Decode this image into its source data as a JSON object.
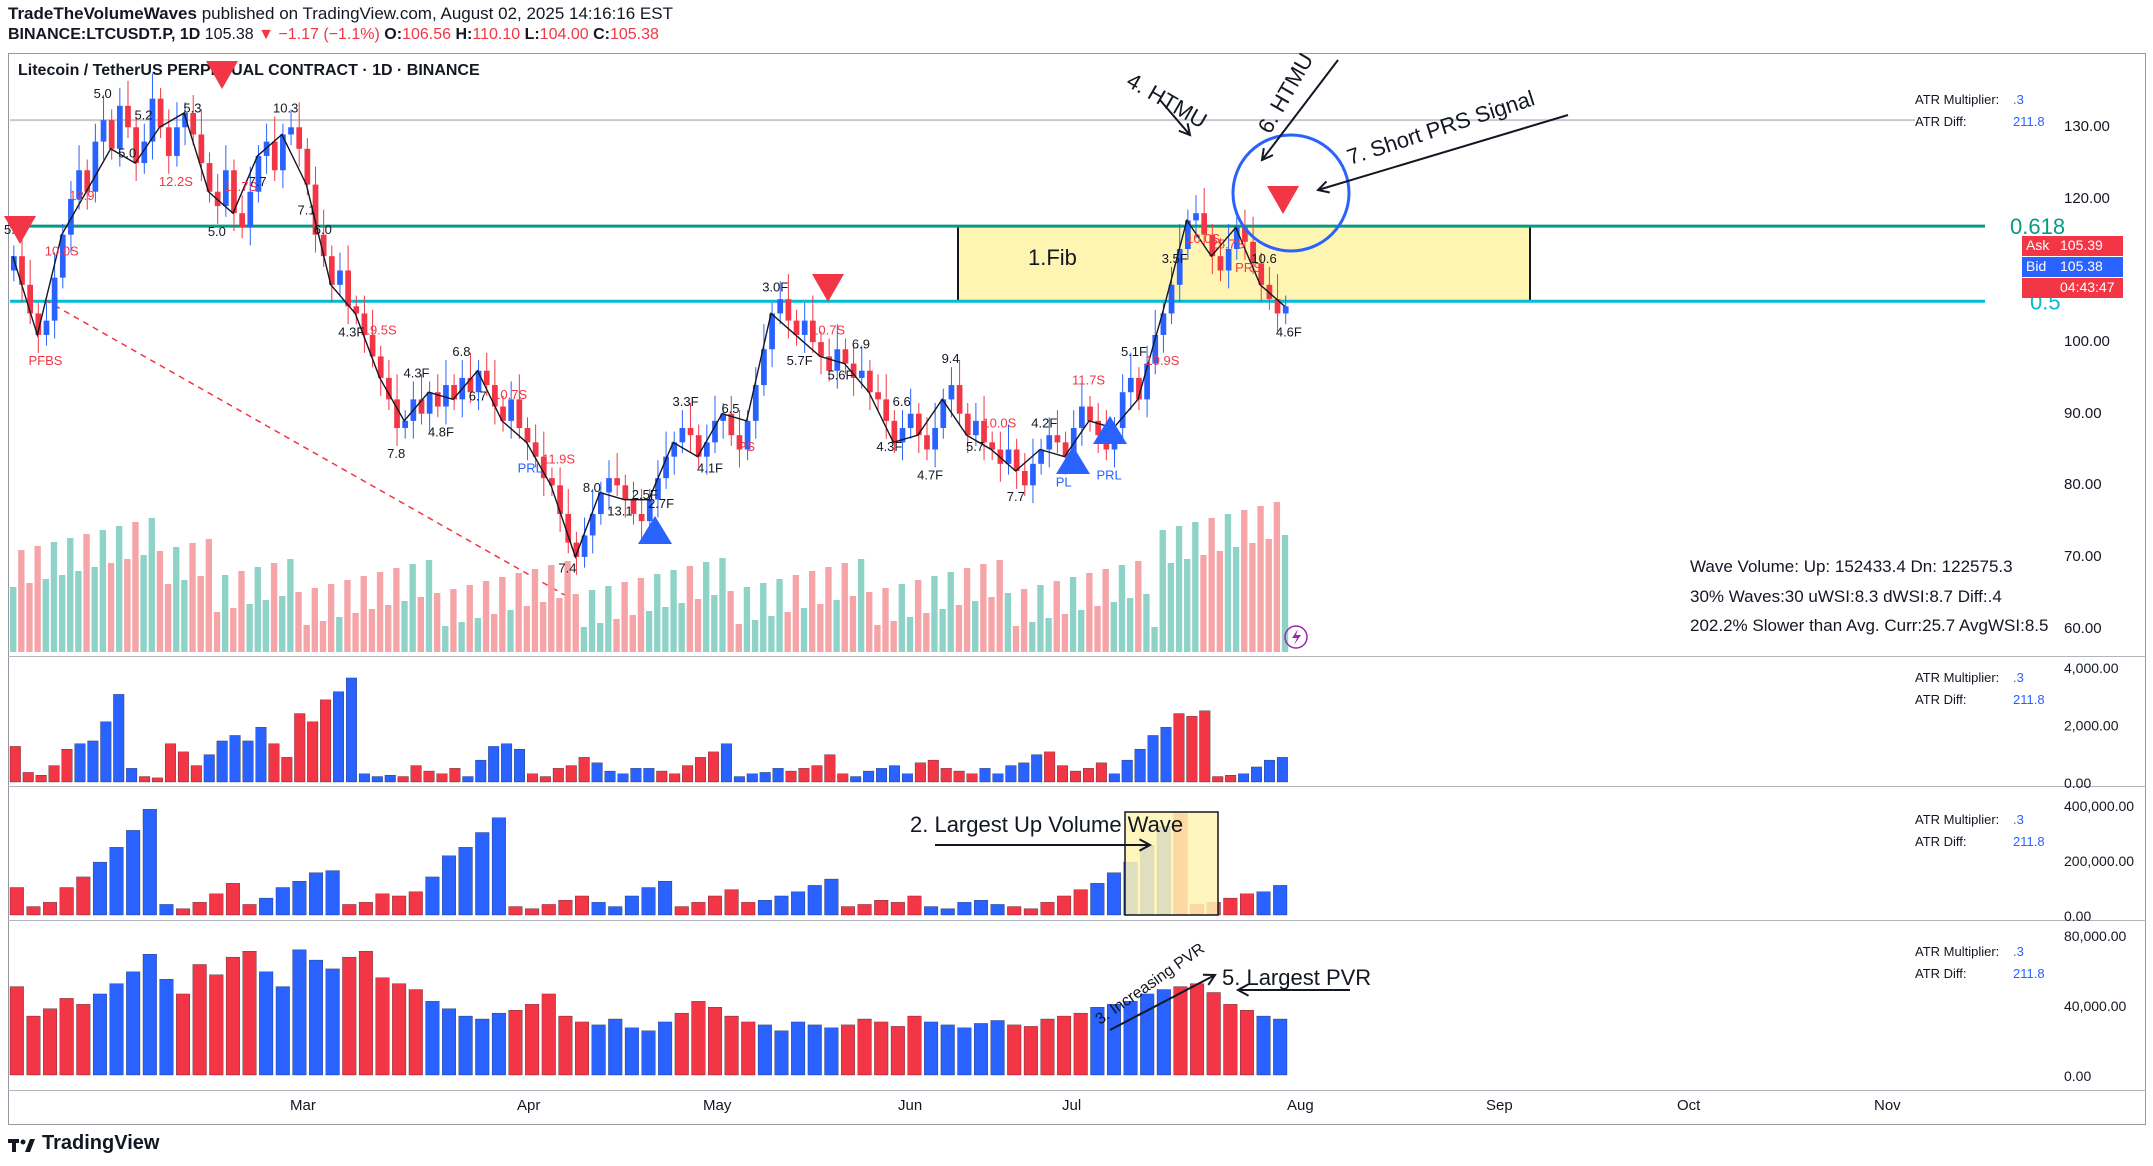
{
  "header": {
    "author": "TradeTheVolumeWaves",
    "published": "published on TradingView.com, August 02, 2025 14:16:16 EST",
    "symbol_line": "BINANCE:LTCUSDT.P, 1D",
    "last": "105.38",
    "change": "▼ −1.17 (−1.1%)",
    "o_label": "O:",
    "o": "106.56",
    "h_label": "H:",
    "h": "110.10",
    "l_label": "L:",
    "l": "104.00",
    "c_label": "C:",
    "c": "105.38"
  },
  "chart_title": "Litecoin / TetherUS PERPETUAL CONTRACT · 1D · BINANCE",
  "price_axis": [
    "130.00",
    "120.00",
    "110.00",
    "100.00",
    "90.00",
    "80.00",
    "70.00",
    "60.00"
  ],
  "fib": {
    "upper_label": "0.618",
    "lower_label": "0.5",
    "zone_label": "1.Fib"
  },
  "badges": {
    "ask_label": "Ask",
    "ask": "105.39",
    "bid_label": "Bid",
    "bid": "105.38",
    "countdown": "04:43:47"
  },
  "atr_box": {
    "mult_label": "ATR Multiplier:",
    "mult": ".3",
    "diff_label": "ATR Diff:",
    "diff": "211.8"
  },
  "stats": {
    "line1": "Wave Volume: Up: 152433.4 Dn: 122575.3",
    "line2": "30% Waves:30 uWSI:8.3 dWSI:8.7 Diff:.4",
    "line3": "202.2% Slower than Avg. Curr:25.7 AvgWSI:8.5"
  },
  "panes": [
    {
      "name": "wave-time",
      "axis": [
        "4,000.00",
        "2,000.00",
        "0.00"
      ]
    },
    {
      "name": "wave-volume",
      "axis": [
        "400,000.00",
        "200,000.00",
        "0.00"
      ]
    },
    {
      "name": "pvr",
      "axis": [
        "80,000.00",
        "40,000.00",
        "0.00"
      ]
    }
  ],
  "time_axis": [
    "Mar",
    "Apr",
    "May",
    "Jun",
    "Jul",
    "Aug",
    "Sep",
    "Oct",
    "Nov"
  ],
  "annotations": {
    "htmu4": "4. HTMU",
    "htmu6": "6. HTMU",
    "prs7": "7. Short PRS Signal",
    "largest_up": "2. Largest Up Volume Wave",
    "increasing_pvr": "3. Increasing PVR",
    "largest_pvr": "5. Largest PVR"
  },
  "wave_labels": [
    {
      "t": "5.4",
      "c": "dark"
    },
    {
      "t": "PFBS",
      "c": "red"
    },
    {
      "t": "10.0S",
      "c": "red"
    },
    {
      "t": "12.9",
      "c": "red"
    },
    {
      "t": "5.0",
      "c": "dark"
    },
    {
      "t": "5.0",
      "c": "dark"
    },
    {
      "t": "5.2",
      "c": "dark"
    },
    {
      "t": "12.2S",
      "c": "red"
    },
    {
      "t": "5.3",
      "c": "dark"
    },
    {
      "t": "5.0",
      "c": "dark"
    },
    {
      "t": "11.7S",
      "c": "red"
    },
    {
      "t": "7.7",
      "c": "dark"
    },
    {
      "t": "10.3",
      "c": "dark"
    },
    {
      "t": "7.1",
      "c": "dark"
    },
    {
      "t": "6.0",
      "c": "dark"
    },
    {
      "t": "4.3F",
      "c": "dark"
    },
    {
      "t": "19.5S",
      "c": "red"
    },
    {
      "t": "7.8",
      "c": "dark"
    },
    {
      "t": "4.3F",
      "c": "dark"
    },
    {
      "t": "4.8F",
      "c": "dark"
    },
    {
      "t": "6.8",
      "c": "dark"
    },
    {
      "t": "6.7",
      "c": "dark"
    },
    {
      "t": "10.7S",
      "c": "red"
    },
    {
      "t": "PRL",
      "c": "blue"
    },
    {
      "t": "11.9S",
      "c": "red"
    },
    {
      "t": "7.4",
      "c": "dark"
    },
    {
      "t": "8.0",
      "c": "dark"
    },
    {
      "t": "13.1",
      "c": "dark"
    },
    {
      "t": "2.5F",
      "c": "dark"
    },
    {
      "t": "2.7F",
      "c": "dark"
    },
    {
      "t": "3.3F",
      "c": "dark"
    },
    {
      "t": "4.1F",
      "c": "dark"
    },
    {
      "t": "6.5",
      "c": "dark"
    },
    {
      "t": "PS",
      "c": "red"
    },
    {
      "t": "3.0F",
      "c": "dark"
    },
    {
      "t": "5.7F",
      "c": "dark"
    },
    {
      "t": "10.7S",
      "c": "red"
    },
    {
      "t": "5.6F",
      "c": "dark"
    },
    {
      "t": "6.9",
      "c": "dark"
    },
    {
      "t": "4.3F",
      "c": "dark"
    },
    {
      "t": "6.6",
      "c": "dark"
    },
    {
      "t": "4.7F",
      "c": "dark"
    },
    {
      "t": "9.4",
      "c": "dark"
    },
    {
      "t": "5.7",
      "c": "dark"
    },
    {
      "t": "10.0S",
      "c": "red"
    },
    {
      "t": "7.7",
      "c": "dark"
    },
    {
      "t": "4.2F",
      "c": "dark"
    },
    {
      "t": "PL",
      "c": "blue"
    },
    {
      "t": "11.7S",
      "c": "red"
    },
    {
      "t": "PRL",
      "c": "blue"
    },
    {
      "t": "5.1F",
      "c": "dark"
    },
    {
      "t": "10.9S",
      "c": "red"
    },
    {
      "t": "3.5F",
      "c": "dark"
    },
    {
      "t": "10.0S",
      "c": "red"
    },
    {
      "t": "25.7S",
      "c": "red"
    },
    {
      "t": "PRS",
      "c": "red"
    },
    {
      "t": "10.6",
      "c": "dark"
    },
    {
      "t": "4.6F",
      "c": "dark"
    }
  ],
  "colors": {
    "up": "#2962ff",
    "down": "#f23645",
    "vol_up": "#8fd3c8",
    "vol_down": "#f5a5a8",
    "fib618": "#089981",
    "fib05": "#00bcd4",
    "zone": "#fff5b3",
    "circle": "#2962ff"
  },
  "chart_data": {
    "type": "candlestick",
    "timeframe": "1D",
    "price_ylim": [
      57,
      138
    ],
    "fib_levels": {
      "0.618": 116.2,
      "0.5": 105.7
    },
    "horizontal_level": 131.0,
    "closes": [
      112,
      108,
      104,
      101,
      103,
      109,
      115,
      120,
      124,
      121,
      128,
      131,
      127,
      133,
      130,
      125,
      128,
      134,
      130,
      126,
      130,
      132,
      129,
      125,
      121,
      119,
      124,
      118,
      116,
      121,
      126,
      128,
      124,
      129,
      130,
      127,
      122,
      115,
      112,
      108,
      110,
      105,
      104,
      101,
      98,
      95,
      92,
      88,
      89,
      92,
      90,
      93,
      91,
      94,
      92,
      95,
      93,
      96,
      94,
      91,
      89,
      92,
      88,
      86,
      84,
      81,
      80,
      76,
      72,
      70,
      73,
      76,
      79,
      81,
      80,
      78,
      76,
      75,
      78,
      81,
      84,
      86,
      88,
      87,
      84,
      86,
      89,
      90,
      87,
      85,
      89,
      94,
      99,
      104,
      106,
      103,
      101,
      103,
      100,
      98,
      96,
      99,
      97,
      95,
      96,
      93,
      92,
      89,
      86,
      88,
      90,
      87,
      85,
      88,
      92,
      94,
      90,
      87,
      89,
      86,
      85,
      83,
      85,
      82,
      80,
      83,
      85,
      87,
      86,
      84,
      88,
      91,
      89,
      87,
      85,
      88,
      93,
      95,
      92,
      97,
      101,
      104,
      108,
      113,
      117,
      118,
      115,
      112,
      110,
      113,
      116,
      114,
      111,
      108,
      106,
      104,
      105
    ],
    "wave_time": [
      1300,
      350,
      250,
      600,
      1200,
      1400,
      1500,
      2200,
      3200,
      500,
      200,
      150,
      1400,
      1100,
      600,
      1000,
      1500,
      1700,
      1500,
      2000,
      1400,
      900,
      2500,
      2200,
      3000,
      3300,
      3800,
      300,
      200,
      250,
      200,
      600,
      400,
      300,
      500,
      200,
      800,
      1300,
      1400,
      1200,
      300,
      200,
      500,
      600,
      900,
      700,
      400,
      300,
      500,
      500,
      400,
      300,
      600,
      900,
      1100,
      1400,
      200,
      300,
      350,
      500,
      400,
      500,
      600,
      1000,
      300,
      200,
      400,
      500,
      600,
      300,
      700,
      800,
      500,
      400,
      300,
      500,
      300,
      600,
      700,
      1000,
      1100,
      600,
      400,
      500,
      700,
      300,
      800,
      1200,
      1700,
      2000,
      2500,
      2400,
      2600,
      200,
      250,
      300,
      550,
      800,
      900
    ],
    "wave_volume": [
      130000,
      40000,
      60000,
      130000,
      180000,
      250000,
      320000,
      400000,
      500000,
      50000,
      30000,
      60000,
      100000,
      150000,
      50000,
      80000,
      130000,
      160000,
      200000,
      210000,
      50000,
      60000,
      100000,
      90000,
      110000,
      180000,
      280000,
      320000,
      390000,
      460000,
      40000,
      30000,
      50000,
      70000,
      90000,
      60000,
      40000,
      90000,
      130000,
      160000,
      40000,
      60000,
      90000,
      120000,
      60000,
      70000,
      90000,
      110000,
      140000,
      170000,
      40000,
      50000,
      70000,
      60000,
      90000,
      40000,
      30000,
      60000,
      70000,
      50000,
      40000,
      30000,
      60000,
      90000,
      120000,
      150000,
      200000,
      250000,
      330000,
      420000,
      480000,
      50000,
      60000,
      80000,
      100000,
      110000,
      140000
    ],
    "pvr": [
      60000,
      40000,
      45000,
      52000,
      48000,
      55000,
      62000,
      70000,
      82000,
      65000,
      55000,
      75000,
      68000,
      80000,
      84000,
      70000,
      60000,
      85000,
      78000,
      72000,
      80000,
      84000,
      66000,
      62000,
      58000,
      50000,
      45000,
      40000,
      38000,
      42000,
      44000,
      48000,
      55000,
      40000,
      36000,
      34000,
      38000,
      32000,
      30000,
      36000,
      42000,
      50000,
      46000,
      40000,
      36000,
      34000,
      30000,
      36000,
      34000,
      32000,
      34000,
      38000,
      36000,
      33000,
      40000,
      36000,
      34000,
      32000,
      35000,
      37000,
      34000,
      33000,
      38000,
      40000,
      42000,
      46000,
      48000,
      50000,
      55000,
      58000,
      60000,
      62000,
      56000,
      48000,
      44000,
      40000,
      38000
    ]
  }
}
